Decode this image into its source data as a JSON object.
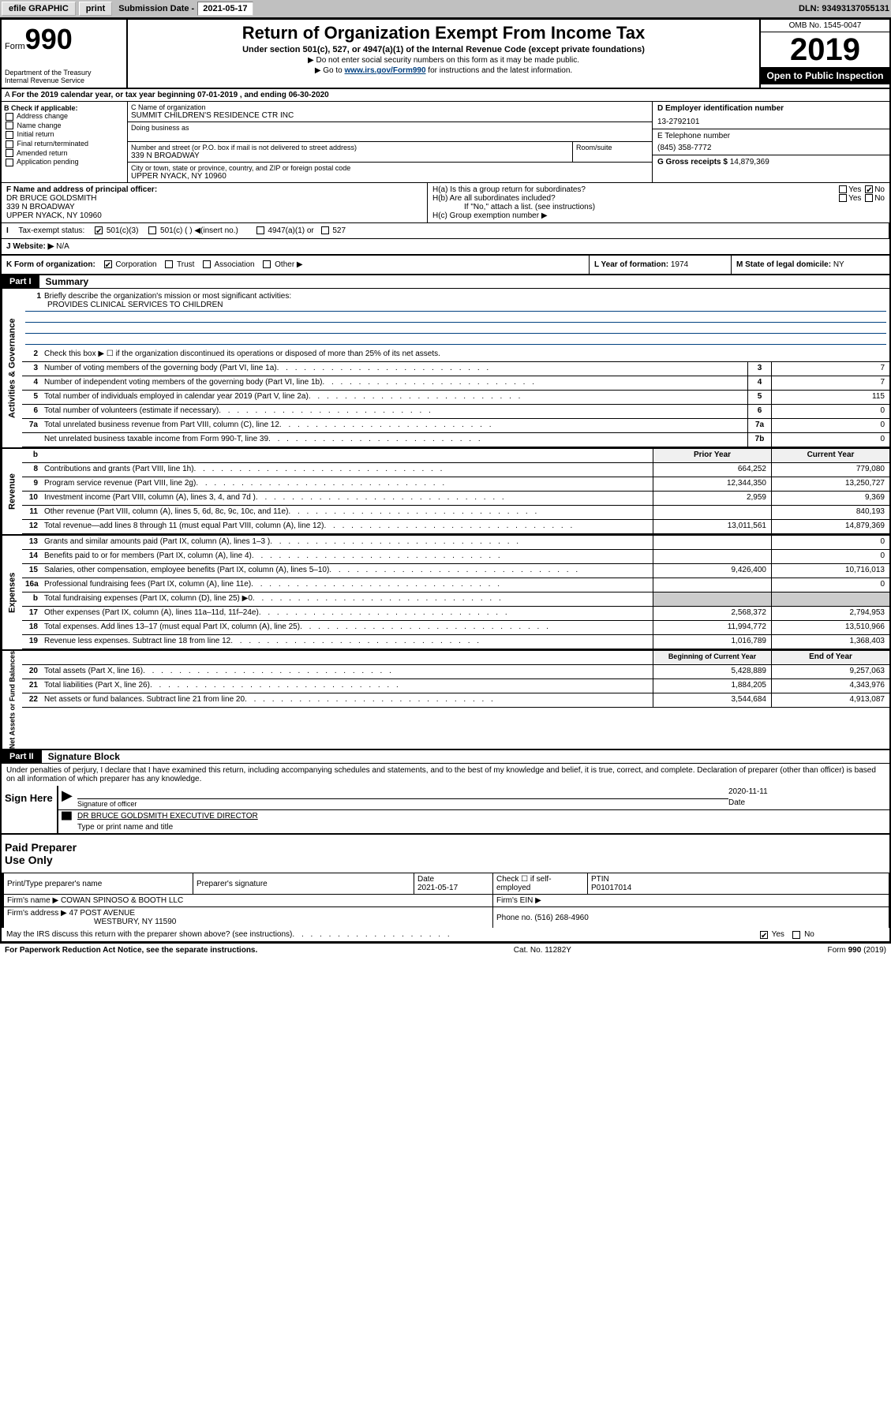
{
  "topbar": {
    "efile": "efile GRAPHIC",
    "print": "print",
    "subdate_label": "Submission Date - ",
    "subdate": "2021-05-17",
    "dln_label": "DLN: ",
    "dln": "93493137055131"
  },
  "header": {
    "form_label": "Form",
    "form_num": "990",
    "dept": "Department of the Treasury\nInternal Revenue Service",
    "title": "Return of Organization Exempt From Income Tax",
    "sub": "Under section 501(c), 527, or 4947(a)(1) of the Internal Revenue Code (except private foundations)",
    "note1": "▶ Do not enter social security numbers on this form as it may be made public.",
    "note2_pre": "▶ Go to ",
    "note2_link": "www.irs.gov/Form990",
    "note2_post": " for instructions and the latest information.",
    "omb": "OMB No. 1545-0047",
    "year": "2019",
    "inspect": "Open to Public Inspection"
  },
  "tax_year": "For the 2019 calendar year, or tax year beginning 07-01-2019    , and ending 06-30-2020",
  "section_b": {
    "label": "B Check if applicable:",
    "opts": [
      "Address change",
      "Name change",
      "Initial return",
      "Final return/terminated",
      "Amended return",
      "Application pending"
    ]
  },
  "section_c": {
    "name_label": "C Name of organization",
    "name": "SUMMIT CHILDREN'S RESIDENCE CTR INC",
    "dba_label": "Doing business as",
    "addr_label": "Number and street (or P.O. box if mail is not delivered to street address)",
    "addr": "339 N BROADWAY",
    "room_label": "Room/suite",
    "city_label": "City or town, state or province, country, and ZIP or foreign postal code",
    "city": "UPPER NYACK, NY  10960"
  },
  "section_d": {
    "ein_label": "D Employer identification number",
    "ein": "13-2792101",
    "phone_label": "E Telephone number",
    "phone": "(845) 358-7772",
    "gross_label": "G Gross receipts $ ",
    "gross": "14,879,369"
  },
  "section_f": {
    "label": "F Name and address of principal officer:",
    "name": "DR BRUCE GOLDSMITH",
    "addr1": "339 N BROADWAY",
    "addr2": "UPPER NYACK, NY  10960"
  },
  "section_h": {
    "ha": "H(a)  Is this a group return for subordinates?",
    "hb": "H(b)  Are all subordinates included?",
    "hb_note": "If \"No,\" attach a list. (see instructions)",
    "hc": "H(c)  Group exemption number ▶"
  },
  "section_i": {
    "label": "Tax-exempt status:",
    "opt1": "501(c)(3)",
    "opt2": "501(c) (  ) ◀(insert no.)",
    "opt3": "4947(a)(1) or",
    "opt4": "527"
  },
  "section_j": {
    "label": "J   Website: ▶",
    "value": " N/A"
  },
  "section_k": {
    "label": "K Form of organization:",
    "opts": [
      "Corporation",
      "Trust",
      "Association",
      "Other ▶"
    ]
  },
  "section_l": {
    "label": "L Year of formation: ",
    "value": "1974"
  },
  "section_m": {
    "label": "M State of legal domicile: ",
    "value": "NY"
  },
  "part1": {
    "header": "Part I",
    "title": "Summary"
  },
  "summary": {
    "vtabs": [
      "Activities & Governance",
      "Revenue",
      "Expenses",
      "Net Assets or Fund Balances"
    ],
    "line1": {
      "num": "1",
      "desc": "Briefly describe the organization's mission or most significant activities:",
      "text": "PROVIDES CLINICAL SERVICES TO CHILDREN"
    },
    "line2": {
      "num": "2",
      "desc": "Check this box ▶ ☐  if the organization discontinued its operations or disposed of more than 25% of its net assets."
    },
    "governance_lines": [
      {
        "num": "3",
        "desc": "Number of voting members of the governing body (Part VI, line 1a)",
        "col": "3",
        "val": "7"
      },
      {
        "num": "4",
        "desc": "Number of independent voting members of the governing body (Part VI, line 1b)",
        "col": "4",
        "val": "7"
      },
      {
        "num": "5",
        "desc": "Total number of individuals employed in calendar year 2019 (Part V, line 2a)",
        "col": "5",
        "val": "115"
      },
      {
        "num": "6",
        "desc": "Total number of volunteers (estimate if necessary)",
        "col": "6",
        "val": "0"
      },
      {
        "num": "7a",
        "desc": "Total unrelated business revenue from Part VIII, column (C), line 12",
        "col": "7a",
        "val": "0"
      },
      {
        "num": "",
        "desc": "Net unrelated business taxable income from Form 990-T, line 39",
        "col": "7b",
        "val": "0"
      }
    ],
    "year_hdr": {
      "b": "b",
      "prior": "Prior Year",
      "current": "Current Year"
    },
    "revenue_lines": [
      {
        "num": "8",
        "desc": "Contributions and grants (Part VIII, line 1h)",
        "prior": "664,252",
        "current": "779,080"
      },
      {
        "num": "9",
        "desc": "Program service revenue (Part VIII, line 2g)",
        "prior": "12,344,350",
        "current": "13,250,727"
      },
      {
        "num": "10",
        "desc": "Investment income (Part VIII, column (A), lines 3, 4, and 7d )",
        "prior": "2,959",
        "current": "9,369"
      },
      {
        "num": "11",
        "desc": "Other revenue (Part VIII, column (A), lines 5, 6d, 8c, 9c, 10c, and 11e)",
        "prior": "",
        "current": "840,193"
      },
      {
        "num": "12",
        "desc": "Total revenue—add lines 8 through 11 (must equal Part VIII, column (A), line 12)",
        "prior": "13,011,561",
        "current": "14,879,369"
      }
    ],
    "expense_lines": [
      {
        "num": "13",
        "desc": "Grants and similar amounts paid (Part IX, column (A), lines 1–3 )",
        "prior": "",
        "current": "0"
      },
      {
        "num": "14",
        "desc": "Benefits paid to or for members (Part IX, column (A), line 4)",
        "prior": "",
        "current": "0"
      },
      {
        "num": "15",
        "desc": "Salaries, other compensation, employee benefits (Part IX, column (A), lines 5–10)",
        "prior": "9,426,400",
        "current": "10,716,013"
      },
      {
        "num": "16a",
        "desc": "Professional fundraising fees (Part IX, column (A), line 11e)",
        "prior": "",
        "current": "0"
      },
      {
        "num": "b",
        "desc": "Total fundraising expenses (Part IX, column (D), line 25) ▶0",
        "prior": null,
        "current": null
      },
      {
        "num": "17",
        "desc": "Other expenses (Part IX, column (A), lines 11a–11d, 11f–24e)",
        "prior": "2,568,372",
        "current": "2,794,953"
      },
      {
        "num": "18",
        "desc": "Total expenses. Add lines 13–17 (must equal Part IX, column (A), line 25)",
        "prior": "11,994,772",
        "current": "13,510,966"
      },
      {
        "num": "19",
        "desc": "Revenue less expenses. Subtract line 18 from line 12",
        "prior": "1,016,789",
        "current": "1,368,403"
      }
    ],
    "net_hdr": {
      "prior": "Beginning of Current Year",
      "current": "End of Year"
    },
    "net_lines": [
      {
        "num": "20",
        "desc": "Total assets (Part X, line 16)",
        "prior": "5,428,889",
        "current": "9,257,063"
      },
      {
        "num": "21",
        "desc": "Total liabilities (Part X, line 26)",
        "prior": "1,884,205",
        "current": "4,343,976"
      },
      {
        "num": "22",
        "desc": "Net assets or fund balances. Subtract line 21 from line 20",
        "prior": "3,544,684",
        "current": "4,913,087"
      }
    ]
  },
  "part2": {
    "header": "Part II",
    "title": "Signature Block"
  },
  "sig": {
    "text": "Under penalties of perjury, I declare that I have examined this return, including accompanying schedules and statements, and to the best of my knowledge and belief, it is true, correct, and complete. Declaration of preparer (other than officer) is based on all information of which preparer has any knowledge.",
    "sign_here": "Sign Here",
    "sig_label": "Signature of officer",
    "date": "2020-11-11",
    "date_label": "Date",
    "name": "DR BRUCE GOLDSMITH  EXECUTIVE DIRECTOR",
    "name_label": "Type or print name and title"
  },
  "paid": {
    "label": "Paid Preparer Use Only",
    "hdr": [
      "Print/Type preparer's name",
      "Preparer's signature",
      "Date",
      "Check ☐ if self-employed",
      "PTIN"
    ],
    "r1": [
      "",
      "",
      "2021-05-17",
      "",
      "P01017014"
    ],
    "firm_name_label": "Firm's name      ▶",
    "firm_name": "COWAN SPINOSO & BOOTH LLC",
    "firm_ein_label": "Firm's EIN ▶",
    "firm_addr_label": "Firm's address ▶",
    "firm_addr": "47 POST AVENUE",
    "firm_city": "WESTBURY, NY  11590",
    "firm_phone_label": "Phone no. ",
    "firm_phone": "(516) 268-4960"
  },
  "bottom": {
    "discuss": "May the IRS discuss this return with the preparer shown above? (see instructions)",
    "yes": "Yes",
    "no": "No",
    "paperwork": "For Paperwork Reduction Act Notice, see the separate instructions.",
    "cat": "Cat. No. 11282Y",
    "formref": "Form 990 (2019)"
  }
}
